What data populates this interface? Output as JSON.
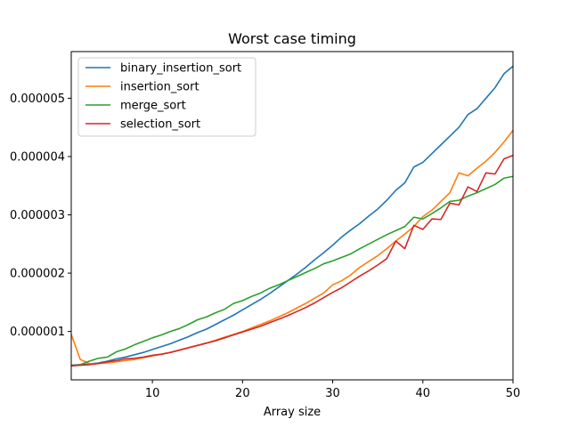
{
  "chart_data": {
    "type": "line",
    "title": "Worst case timing",
    "xlabel": "Array size",
    "ylabel": "",
    "xlim": [
      1,
      50
    ],
    "ylim": [
      1.7e-07,
      5.8e-06
    ],
    "xticks": [
      10,
      20,
      30,
      40,
      50
    ],
    "yticks": [
      1e-06,
      2e-06,
      3e-06,
      4e-06,
      5e-06
    ],
    "ytick_labels": [
      "0.000001",
      "0.000002",
      "0.000003",
      "0.000004",
      "0.000005"
    ],
    "grid": false,
    "legend_position": "top-left",
    "x": [
      1,
      2,
      3,
      4,
      5,
      6,
      7,
      8,
      9,
      10,
      11,
      12,
      13,
      14,
      15,
      16,
      17,
      18,
      19,
      20,
      21,
      22,
      23,
      24,
      25,
      26,
      27,
      28,
      29,
      30,
      31,
      32,
      33,
      34,
      35,
      36,
      37,
      38,
      39,
      40,
      41,
      42,
      43,
      44,
      45,
      46,
      47,
      48,
      49,
      50
    ],
    "series": [
      {
        "name": "binary_insertion_sort",
        "color": "#1f77b4",
        "values": [
          4.2e-07,
          4.3e-07,
          4.4e-07,
          4.6e-07,
          4.9e-07,
          5.3e-07,
          5.6e-07,
          6e-07,
          6.4e-07,
          6.9e-07,
          7.4e-07,
          7.9e-07,
          8.5e-07,
          9.1e-07,
          9.8e-07,
          1.04e-06,
          1.12e-06,
          1.2e-06,
          1.28e-06,
          1.37e-06,
          1.46e-06,
          1.55e-06,
          1.65e-06,
          1.76e-06,
          1.87e-06,
          1.98e-06,
          2.1e-06,
          2.23e-06,
          2.35e-06,
          2.48e-06,
          2.62e-06,
          2.74e-06,
          2.85e-06,
          2.98e-06,
          3.1e-06,
          3.25e-06,
          3.42e-06,
          3.55e-06,
          3.82e-06,
          3.9e-06,
          4.05e-06,
          4.2e-06,
          4.35e-06,
          4.5e-06,
          4.72e-06,
          4.82e-06,
          5e-06,
          5.18e-06,
          5.42e-06,
          5.55e-06
        ]
      },
      {
        "name": "insertion_sort",
        "color": "#ff7f0e",
        "values": [
          9.5e-07,
          5.2e-07,
          4.5e-07,
          4.5e-07,
          4.6e-07,
          4.8e-07,
          5e-07,
          5.2e-07,
          5.5e-07,
          5.8e-07,
          6.1e-07,
          6.4e-07,
          6.8e-07,
          7.2e-07,
          7.6e-07,
          8e-07,
          8.5e-07,
          9e-07,
          9.5e-07,
          1e-06,
          1.06e-06,
          1.12e-06,
          1.18e-06,
          1.25e-06,
          1.32e-06,
          1.4e-06,
          1.48e-06,
          1.57e-06,
          1.66e-06,
          1.8e-06,
          1.87e-06,
          1.97e-06,
          2.1e-06,
          2.2e-06,
          2.3e-06,
          2.42e-06,
          2.55e-06,
          2.67e-06,
          2.8e-06,
          2.97e-06,
          3.08e-06,
          3.23e-06,
          3.38e-06,
          3.72e-06,
          3.67e-06,
          3.8e-06,
          3.92e-06,
          4.07e-06,
          4.25e-06,
          4.45e-06
        ]
      },
      {
        "name": "merge_sort",
        "color": "#2ca02c",
        "values": [
          4.1e-07,
          4.3e-07,
          4.9e-07,
          5.4e-07,
          5.6e-07,
          6.5e-07,
          7e-07,
          7.7e-07,
          8.3e-07,
          8.9e-07,
          9.4e-07,
          1e-06,
          1.05e-06,
          1.12e-06,
          1.2e-06,
          1.25e-06,
          1.32e-06,
          1.38e-06,
          1.48e-06,
          1.53e-06,
          1.6e-06,
          1.66e-06,
          1.74e-06,
          1.8e-06,
          1.87e-06,
          1.94e-06,
          2.01e-06,
          2.08e-06,
          2.16e-06,
          2.21e-06,
          2.27e-06,
          2.33e-06,
          2.42e-06,
          2.5e-06,
          2.58e-06,
          2.66e-06,
          2.73e-06,
          2.8e-06,
          2.96e-06,
          2.93e-06,
          3.02e-06,
          3.12e-06,
          3.23e-06,
          3.25e-06,
          3.32e-06,
          3.38e-06,
          3.45e-06,
          3.52e-06,
          3.63e-06,
          3.66e-06
        ]
      },
      {
        "name": "selection_sort",
        "color": "#d62728",
        "values": [
          4.1e-07,
          4.2e-07,
          4.3e-07,
          4.5e-07,
          4.8e-07,
          5e-07,
          5.3e-07,
          5.4e-07,
          5.6e-07,
          5.9e-07,
          6.1e-07,
          6.4e-07,
          6.8e-07,
          7.2e-07,
          7.6e-07,
          8e-07,
          8.4e-07,
          8.9e-07,
          9.4e-07,
          9.9e-07,
          1.04e-06,
          1.09e-06,
          1.15e-06,
          1.21e-06,
          1.27e-06,
          1.34e-06,
          1.41e-06,
          1.49e-06,
          1.58e-06,
          1.67e-06,
          1.75e-06,
          1.85e-06,
          1.95e-06,
          2.04e-06,
          2.14e-06,
          2.25e-06,
          2.55e-06,
          2.42e-06,
          2.82e-06,
          2.75e-06,
          2.93e-06,
          2.92e-06,
          3.2e-06,
          3.17e-06,
          3.48e-06,
          3.4e-06,
          3.72e-06,
          3.7e-06,
          3.96e-06,
          4.02e-06
        ]
      }
    ]
  }
}
